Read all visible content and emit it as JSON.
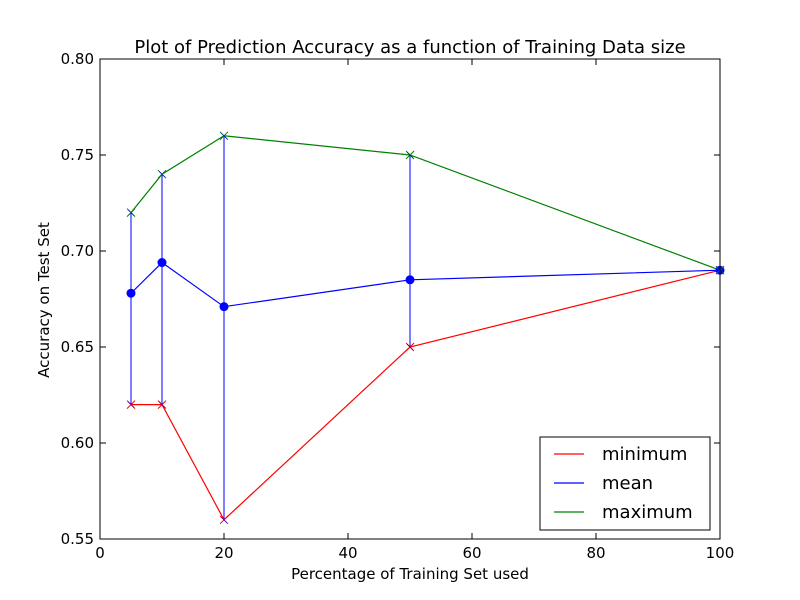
{
  "chart_data": {
    "type": "line",
    "title": "Plot of Prediction Accuracy as a function of Training Data size",
    "xlabel": "Percentage of Training Set used",
    "ylabel": "Accuracy on Test Set",
    "xlim": [
      0,
      100
    ],
    "ylim": [
      0.55,
      0.8
    ],
    "xticks": [
      "0",
      "20",
      "40",
      "60",
      "80",
      "100"
    ],
    "yticks": [
      "0.55",
      "0.60",
      "0.65",
      "0.70",
      "0.75",
      "0.80"
    ],
    "grid": false,
    "legend_position": "bottom-right",
    "x": [
      5,
      10,
      20,
      50,
      100
    ],
    "series": [
      {
        "name": "minimum",
        "color": "#ff0000",
        "values": [
          0.62,
          0.62,
          0.56,
          0.65,
          0.69
        ]
      },
      {
        "name": "mean",
        "color": "#0000ff",
        "values": [
          0.678,
          0.694,
          0.671,
          0.685,
          0.69
        ]
      },
      {
        "name": "maximum",
        "color": "#008000",
        "values": [
          0.72,
          0.74,
          0.76,
          0.75,
          0.69
        ]
      }
    ],
    "error_bars": {
      "color": "#0000ff",
      "ranges": [
        [
          0.62,
          0.72
        ],
        [
          0.62,
          0.74
        ],
        [
          0.56,
          0.76
        ],
        [
          0.65,
          0.75
        ],
        [
          0.69,
          0.69
        ]
      ]
    }
  }
}
